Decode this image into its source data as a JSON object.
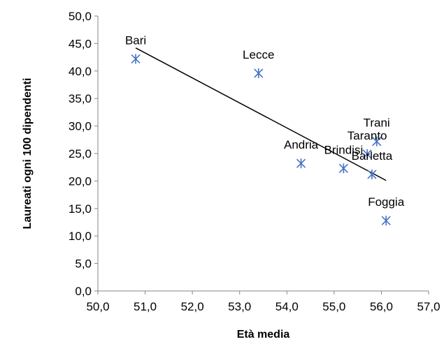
{
  "chart_data": {
    "type": "scatter",
    "title": "",
    "xlabel": "Età media",
    "ylabel": "Laureati ogni 100 dipendenti",
    "xlim": [
      50.0,
      57.0
    ],
    "ylim": [
      0.0,
      50.0
    ],
    "x_ticks": [
      "50,0",
      "51,0",
      "52,0",
      "53,0",
      "54,0",
      "55,0",
      "56,0",
      "57,0"
    ],
    "y_ticks": [
      "0,0",
      "5,0",
      "10,0",
      "15,0",
      "20,0",
      "25,0",
      "30,0",
      "35,0",
      "40,0",
      "45,0",
      "50,0"
    ],
    "grid": false,
    "marker_color": "#4472C4",
    "points": [
      {
        "label": "Bari",
        "x": 50.8,
        "y": 42.2
      },
      {
        "label": "Lecce",
        "x": 53.4,
        "y": 39.6
      },
      {
        "label": "Andria",
        "x": 54.3,
        "y": 23.2
      },
      {
        "label": "Brindisi",
        "x": 55.2,
        "y": 22.3
      },
      {
        "label": "Barletta",
        "x": 55.8,
        "y": 21.2
      },
      {
        "label": "Taranto",
        "x": 55.7,
        "y": 24.9
      },
      {
        "label": "Trani",
        "x": 55.9,
        "y": 27.2
      },
      {
        "label": "Foggia",
        "x": 56.1,
        "y": 12.8
      }
    ],
    "trendline": {
      "x": [
        50.8,
        56.1
      ],
      "y": [
        44.2,
        20.1
      ],
      "color": "#000000"
    }
  }
}
